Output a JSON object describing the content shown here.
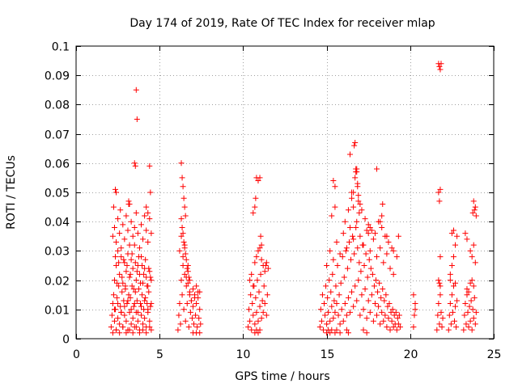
{
  "chart_data": {
    "type": "scatter",
    "title": "Day 174 of 2019, Rate Of TEC Index for receiver mlap",
    "xlabel": "GPS time / hours",
    "ylabel": "ROTI / TECUs",
    "xlim": [
      0,
      25
    ],
    "ylim": [
      0,
      0.1
    ],
    "xticks": [
      0,
      5,
      10,
      15,
      20,
      25
    ],
    "xtick_labels": [
      "0",
      "5",
      "10",
      "15",
      "20",
      "25"
    ],
    "yticks": [
      0,
      0.01,
      0.02,
      0.03,
      0.04,
      0.05,
      0.06,
      0.07,
      0.08,
      0.09,
      0.1
    ],
    "ytick_labels": [
      "0",
      "0.01",
      "0.02",
      "0.03",
      "0.04",
      "0.05",
      "0.06",
      "0.07",
      "0.08",
      "0.09",
      "0.1"
    ],
    "grid": true,
    "legend": "none",
    "marker": "plus",
    "color": "#ff0000",
    "series": [
      {
        "x": [
          2.1,
          2.15,
          2.2,
          2.25,
          2.3,
          2.3,
          2.35,
          2.4,
          2.4,
          2.45,
          2.5,
          2.5,
          2.55,
          2.6,
          2.6,
          2.65,
          2.7,
          2.7,
          2.75,
          2.8,
          2.8,
          2.85,
          2.9,
          2.9,
          2.95,
          3.0,
          3.0,
          3.05,
          3.1,
          3.1,
          3.15,
          3.2,
          3.2,
          3.25,
          3.3,
          3.3,
          3.35,
          3.4,
          3.4,
          3.45,
          3.5,
          3.5,
          3.55,
          3.6,
          3.6,
          3.65,
          3.7,
          3.7,
          3.75,
          3.8,
          3.8,
          3.85,
          3.9,
          3.9,
          3.95,
          4.0,
          4.0,
          4.05,
          4.1,
          4.1,
          4.15,
          4.2,
          4.2,
          4.25,
          4.3,
          4.3,
          4.35,
          4.4,
          4.4,
          4.45,
          4.5,
          4.5,
          2.2,
          2.3,
          2.4,
          2.5,
          2.6,
          2.7,
          2.8,
          2.9,
          3.0,
          3.1,
          3.2,
          3.3,
          3.4,
          3.5,
          3.6,
          3.7,
          3.8,
          3.9,
          4.0,
          4.1,
          4.2,
          4.3,
          4.4,
          4.5,
          2.2,
          2.4,
          2.6,
          2.8,
          3.0,
          3.2,
          3.4,
          3.6,
          3.8,
          4.0,
          4.2,
          4.4,
          2.3,
          2.5,
          2.7,
          2.9,
          3.1,
          3.3,
          3.5,
          3.7,
          3.9,
          4.1,
          4.3,
          4.5,
          2.25,
          2.35,
          2.45,
          2.55,
          2.65,
          2.75,
          2.85,
          2.95,
          3.05,
          3.15,
          3.25,
          3.35,
          3.45,
          3.55,
          3.65,
          3.75,
          3.85,
          3.95,
          4.05,
          4.15,
          4.25,
          4.35,
          4.45,
          3.6,
          3.65,
          3.5,
          3.55,
          4.4,
          4.45,
          2.35,
          2.4,
          3.15,
          3.2,
          4.2,
          4.3
        ],
        "y": [
          0.004,
          0.008,
          0.012,
          0.015,
          0.006,
          0.02,
          0.01,
          0.003,
          0.025,
          0.014,
          0.007,
          0.03,
          0.018,
          0.005,
          0.022,
          0.011,
          0.009,
          0.028,
          0.016,
          0.004,
          0.019,
          0.013,
          0.008,
          0.026,
          0.017,
          0.006,
          0.023,
          0.012,
          0.003,
          0.029,
          0.015,
          0.009,
          0.021,
          0.014,
          0.005,
          0.027,
          0.018,
          0.007,
          0.024,
          0.011,
          0.004,
          0.032,
          0.016,
          0.009,
          0.02,
          0.013,
          0.006,
          0.025,
          0.017,
          0.003,
          0.022,
          0.012,
          0.008,
          0.028,
          0.015,
          0.005,
          0.019,
          0.01,
          0.007,
          0.024,
          0.014,
          0.004,
          0.021,
          0.012,
          0.009,
          0.018,
          0.016,
          0.006,
          0.023,
          0.011,
          0.003,
          0.02,
          0.035,
          0.038,
          0.033,
          0.041,
          0.036,
          0.031,
          0.039,
          0.034,
          0.042,
          0.037,
          0.032,
          0.04,
          0.035,
          0.038,
          0.043,
          0.036,
          0.031,
          0.039,
          0.034,
          0.042,
          0.037,
          0.033,
          0.041,
          0.036,
          0.002,
          0.003,
          0.002,
          0.004,
          0.002,
          0.003,
          0.002,
          0.004,
          0.002,
          0.003,
          0.002,
          0.004,
          0.01,
          0.012,
          0.009,
          0.011,
          0.013,
          0.01,
          0.012,
          0.009,
          0.011,
          0.013,
          0.01,
          0.012,
          0.045,
          0.028,
          0.019,
          0.026,
          0.044,
          0.021,
          0.027,
          0.018,
          0.025,
          0.046,
          0.022,
          0.029,
          0.017,
          0.026,
          0.023,
          0.028,
          0.019,
          0.025,
          0.022,
          0.027,
          0.018,
          0.024,
          0.021,
          0.085,
          0.075,
          0.06,
          0.059,
          0.059,
          0.05,
          0.051,
          0.05,
          0.047,
          0.046,
          0.045,
          0.043
        ]
      },
      {
        "x": [
          6.1,
          6.15,
          6.2,
          6.25,
          6.3,
          6.35,
          6.4,
          6.45,
          6.5,
          6.55,
          6.6,
          6.65,
          6.7,
          6.75,
          6.8,
          6.85,
          6.9,
          6.95,
          7.0,
          7.05,
          7.1,
          7.15,
          7.2,
          7.25,
          7.3,
          7.35,
          7.4,
          7.45,
          6.2,
          6.3,
          6.4,
          6.5,
          6.6,
          6.7,
          6.8,
          6.9,
          7.0,
          7.1,
          7.2,
          7.3,
          7.4,
          6.3,
          6.35,
          6.4,
          6.45,
          6.5,
          6.55,
          6.3,
          6.35,
          6.4,
          6.45,
          6.5,
          6.55,
          6.6,
          6.65,
          6.7,
          6.75,
          6.8,
          7.0,
          7.2,
          7.4
        ],
        "y": [
          0.003,
          0.008,
          0.012,
          0.005,
          0.02,
          0.015,
          0.028,
          0.01,
          0.022,
          0.006,
          0.018,
          0.012,
          0.025,
          0.004,
          0.016,
          0.009,
          0.013,
          0.007,
          0.011,
          0.005,
          0.014,
          0.008,
          0.012,
          0.004,
          0.016,
          0.007,
          0.01,
          0.005,
          0.03,
          0.035,
          0.025,
          0.032,
          0.021,
          0.019,
          0.015,
          0.013,
          0.017,
          0.015,
          0.018,
          0.014,
          0.016,
          0.06,
          0.055,
          0.052,
          0.048,
          0.045,
          0.042,
          0.041,
          0.038,
          0.036,
          0.033,
          0.031,
          0.029,
          0.027,
          0.024,
          0.023,
          0.021,
          0.02,
          0.002,
          0.002,
          0.002
        ]
      },
      {
        "x": [
          10.3,
          10.35,
          10.4,
          10.45,
          10.5,
          10.55,
          10.6,
          10.65,
          10.7,
          10.75,
          10.8,
          10.85,
          10.9,
          10.95,
          11.0,
          11.05,
          11.1,
          11.15,
          11.2,
          11.25,
          11.3,
          11.35,
          11.4,
          11.45,
          11.5,
          10.4,
          10.5,
          10.6,
          10.7,
          10.8,
          10.9,
          11.0,
          11.1,
          11.2,
          11.3,
          11.4,
          10.6,
          10.7,
          10.75,
          10.8,
          10.9,
          11.0,
          11.05,
          11.1,
          10.7,
          10.8,
          10.9,
          11.0
        ],
        "y": [
          0.004,
          0.01,
          0.006,
          0.015,
          0.003,
          0.012,
          0.008,
          0.018,
          0.005,
          0.014,
          0.009,
          0.02,
          0.006,
          0.016,
          0.011,
          0.022,
          0.007,
          0.013,
          0.009,
          0.018,
          0.012,
          0.025,
          0.008,
          0.015,
          0.024,
          0.02,
          0.022,
          0.018,
          0.026,
          0.028,
          0.03,
          0.031,
          0.027,
          0.025,
          0.023,
          0.026,
          0.043,
          0.045,
          0.048,
          0.055,
          0.054,
          0.055,
          0.035,
          0.032,
          0.002,
          0.003,
          0.002,
          0.003
        ]
      },
      {
        "x": [
          14.6,
          14.65,
          14.7,
          14.75,
          14.8,
          14.85,
          14.9,
          14.95,
          15.0,
          15.05,
          15.1,
          15.15,
          15.2,
          15.25,
          15.3,
          15.35,
          15.4,
          15.45,
          15.5,
          15.55,
          15.6,
          15.65,
          15.7,
          15.75,
          15.8,
          15.85,
          15.9,
          15.95,
          16.0,
          16.05,
          16.1,
          16.15,
          16.2,
          16.25,
          16.3,
          16.35,
          16.4,
          16.45,
          16.5,
          16.55,
          16.6,
          16.65,
          16.7,
          16.75,
          16.8,
          16.85,
          16.9,
          16.95,
          17.0,
          17.05,
          17.1,
          17.15,
          17.2,
          17.25,
          17.3,
          17.35,
          17.4,
          17.45,
          17.5,
          17.55,
          17.6,
          17.65,
          17.7,
          17.75,
          17.8,
          17.85,
          17.9,
          17.95,
          18.0,
          18.05,
          18.1,
          18.15,
          18.2,
          18.25,
          18.3,
          18.35,
          18.4,
          18.45,
          18.5,
          18.55,
          18.6,
          18.65,
          18.7,
          18.75,
          18.8,
          18.85,
          18.9,
          18.95,
          19.0,
          19.05,
          19.1,
          19.15,
          19.2,
          19.25,
          19.3,
          19.35,
          19.4,
          15.0,
          15.2,
          15.4,
          15.6,
          15.8,
          16.0,
          16.2,
          16.4,
          16.6,
          16.8,
          17.0,
          17.2,
          17.4,
          17.6,
          17.8,
          18.0,
          18.2,
          18.4,
          18.6,
          18.8,
          19.0,
          15.3,
          15.5,
          16.1,
          16.3,
          16.5,
          16.6,
          16.7,
          16.75,
          16.8,
          16.85,
          16.9,
          17.1,
          17.3,
          17.5,
          17.7,
          17.9,
          18.1,
          18.3,
          18.5,
          18.7,
          18.9,
          19.2,
          16.4,
          16.5,
          16.6,
          16.65,
          16.7,
          16.75,
          16.8,
          16.85,
          16.9,
          16.95,
          17.0,
          17.5,
          17.6,
          18.0,
          18.2,
          18.3,
          18.35,
          18.6,
          19.0,
          19.3,
          15.0,
          15.1,
          15.2,
          15.3,
          15.5,
          15.6,
          15.8,
          16.2,
          16.3,
          17.2,
          17.4,
          15.4,
          15.5
        ],
        "y": [
          0.004,
          0.01,
          0.006,
          0.015,
          0.003,
          0.012,
          0.008,
          0.018,
          0.005,
          0.014,
          0.009,
          0.02,
          0.006,
          0.016,
          0.011,
          0.022,
          0.007,
          0.013,
          0.009,
          0.018,
          0.012,
          0.025,
          0.008,
          0.015,
          0.005,
          0.019,
          0.01,
          0.028,
          0.006,
          0.021,
          0.012,
          0.03,
          0.008,
          0.024,
          0.014,
          0.033,
          0.009,
          0.027,
          0.016,
          0.035,
          0.011,
          0.029,
          0.018,
          0.038,
          0.013,
          0.031,
          0.02,
          0.026,
          0.008,
          0.023,
          0.015,
          0.032,
          0.01,
          0.025,
          0.017,
          0.029,
          0.007,
          0.021,
          0.013,
          0.027,
          0.009,
          0.024,
          0.015,
          0.022,
          0.006,
          0.018,
          0.012,
          0.02,
          0.008,
          0.016,
          0.011,
          0.019,
          0.005,
          0.014,
          0.009,
          0.017,
          0.006,
          0.013,
          0.008,
          0.015,
          0.004,
          0.011,
          0.007,
          0.012,
          0.003,
          0.009,
          0.006,
          0.01,
          0.004,
          0.008,
          0.005,
          0.009,
          0.003,
          0.007,
          0.005,
          0.008,
          0.004,
          0.025,
          0.03,
          0.027,
          0.033,
          0.029,
          0.036,
          0.031,
          0.038,
          0.034,
          0.04,
          0.035,
          0.032,
          0.037,
          0.03,
          0.034,
          0.028,
          0.031,
          0.026,
          0.029,
          0.024,
          0.022,
          0.042,
          0.045,
          0.04,
          0.044,
          0.048,
          0.05,
          0.055,
          0.057,
          0.058,
          0.053,
          0.049,
          0.044,
          0.041,
          0.039,
          0.037,
          0.036,
          0.04,
          0.038,
          0.035,
          0.033,
          0.031,
          0.028,
          0.063,
          0.05,
          0.045,
          0.066,
          0.067,
          0.058,
          0.057,
          0.052,
          0.047,
          0.043,
          0.046,
          0.036,
          0.038,
          0.058,
          0.04,
          0.042,
          0.046,
          0.035,
          0.03,
          0.035,
          0.002,
          0.003,
          0.002,
          0.003,
          0.002,
          0.003,
          0.002,
          0.003,
          0.002,
          0.003,
          0.002,
          0.054,
          0.052
        ]
      },
      {
        "x": [
          20.2,
          20.25,
          20.3,
          20.2,
          20.3,
          21.6,
          21.65,
          21.7,
          21.75,
          21.8,
          21.85,
          21.9,
          21.95,
          21.7,
          21.75,
          21.8,
          21.7,
          21.75,
          21.8,
          21.85,
          21.7,
          21.8,
          21.75,
          21.8,
          22.3,
          22.35,
          22.4,
          22.45,
          22.5,
          22.55,
          22.6,
          22.65,
          22.7,
          22.75,
          22.8,
          22.4,
          22.5,
          22.6,
          22.7,
          22.8,
          22.5,
          22.6,
          22.4,
          22.7,
          23.2,
          23.25,
          23.3,
          23.35,
          23.4,
          23.45,
          23.5,
          23.55,
          23.6,
          23.65,
          23.7,
          23.75,
          23.8,
          23.85,
          23.9,
          23.95,
          23.4,
          23.5,
          23.6,
          23.7,
          23.8,
          23.3,
          23.4,
          23.6,
          23.7,
          23.8,
          23.9,
          23.75,
          23.85,
          23.9,
          23.8,
          23.95
        ],
        "y": [
          0.004,
          0.008,
          0.012,
          0.015,
          0.01,
          0.003,
          0.008,
          0.012,
          0.005,
          0.018,
          0.009,
          0.004,
          0.007,
          0.02,
          0.019,
          0.015,
          0.094,
          0.093,
          0.092,
          0.094,
          0.05,
          0.051,
          0.047,
          0.028,
          0.003,
          0.008,
          0.012,
          0.005,
          0.015,
          0.009,
          0.018,
          0.006,
          0.011,
          0.004,
          0.013,
          0.02,
          0.025,
          0.028,
          0.032,
          0.035,
          0.036,
          0.037,
          0.022,
          0.019,
          0.003,
          0.008,
          0.012,
          0.005,
          0.015,
          0.009,
          0.004,
          0.011,
          0.006,
          0.013,
          0.003,
          0.01,
          0.007,
          0.014,
          0.005,
          0.009,
          0.017,
          0.016,
          0.019,
          0.02,
          0.018,
          0.036,
          0.034,
          0.03,
          0.028,
          0.032,
          0.026,
          0.043,
          0.044,
          0.045,
          0.047,
          0.042
        ]
      }
    ]
  }
}
